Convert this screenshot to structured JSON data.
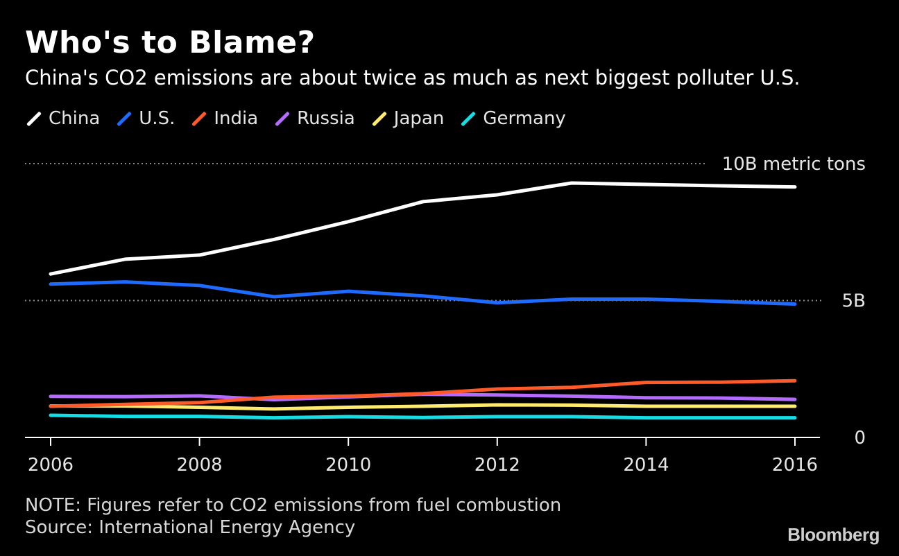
{
  "header": {
    "title": "Who's to Blame?",
    "subtitle": "China's CO2 emissions are about twice as much as next biggest polluter U.S."
  },
  "footer": {
    "note": "NOTE: Figures refer to CO2 emissions from fuel combustion",
    "source": "Source: International Energy Agency",
    "logo": "Bloomberg"
  },
  "chart_data": {
    "type": "line",
    "title": "Who's to Blame?",
    "subtitle": "China's CO2 emissions are about twice as much as next biggest polluter U.S.",
    "x": [
      2006,
      2007,
      2008,
      2009,
      2010,
      2011,
      2012,
      2013,
      2014,
      2015,
      2016
    ],
    "x_ticks": [
      "2006",
      "2008",
      "2010",
      "2012",
      "2014",
      "2016"
    ],
    "xlim": [
      2006,
      2016
    ],
    "ylim": [
      0,
      10
    ],
    "y_unit": "billion metric tons",
    "y_ticks": [
      {
        "value": 10,
        "label": "10B metric tons"
      },
      {
        "value": 5,
        "label": "5B"
      },
      {
        "value": 0,
        "label": "0"
      }
    ],
    "grid": "dotted horizontal at 5B and 10B",
    "legend_position": "top-left",
    "series": [
      {
        "name": "China",
        "color": "#ffffff",
        "values": [
          5.97,
          6.51,
          6.66,
          7.23,
          7.88,
          8.61,
          8.86,
          9.29,
          9.24,
          9.19,
          9.15
        ]
      },
      {
        "name": "U.S.",
        "color": "#1f6bff",
        "values": [
          5.6,
          5.68,
          5.55,
          5.14,
          5.34,
          5.17,
          4.92,
          5.05,
          5.05,
          4.97,
          4.87
        ]
      },
      {
        "name": "India",
        "color": "#ff5a2a",
        "values": [
          1.14,
          1.21,
          1.27,
          1.47,
          1.51,
          1.6,
          1.77,
          1.83,
          2.01,
          2.02,
          2.07
        ]
      },
      {
        "name": "Russia",
        "color": "#b56bff",
        "values": [
          1.5,
          1.49,
          1.52,
          1.38,
          1.48,
          1.58,
          1.55,
          1.51,
          1.45,
          1.44,
          1.39
        ]
      },
      {
        "name": "Japan",
        "color": "#ffeb6e",
        "values": [
          1.15,
          1.15,
          1.1,
          1.04,
          1.1,
          1.14,
          1.19,
          1.18,
          1.14,
          1.14,
          1.14
        ]
      },
      {
        "name": "Germany",
        "color": "#14dde6",
        "values": [
          0.81,
          0.77,
          0.77,
          0.72,
          0.76,
          0.73,
          0.76,
          0.76,
          0.72,
          0.72,
          0.72
        ]
      }
    ]
  }
}
